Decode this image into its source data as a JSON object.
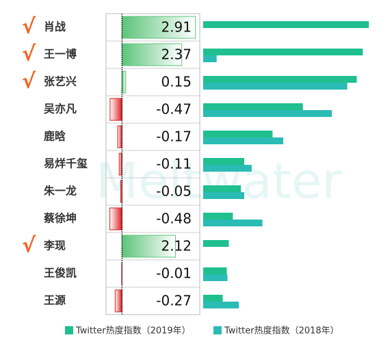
{
  "chart_data": {
    "type": "bar",
    "watermark": "Meltwater",
    "check_mark": "√",
    "categories": [
      "肖战",
      "王一博",
      "张艺兴",
      "吴亦凡",
      "鹿晗",
      "易烊千玺",
      "朱一龙",
      "蔡徐坤",
      "李现",
      "王俊凯",
      "王源"
    ],
    "checked": [
      true,
      true,
      true,
      false,
      false,
      false,
      false,
      false,
      true,
      false,
      false
    ],
    "differences": [
      2.91,
      2.37,
      0.15,
      -0.47,
      -0.17,
      -0.11,
      -0.05,
      -0.48,
      2.12,
      -0.01,
      -0.27
    ],
    "difference_lim": [
      -0.55,
      3.0
    ],
    "series": [
      {
        "name": "Twitter热度指数（2019年）",
        "color": "#1fbf8f",
        "values": [
          24.6,
          23.7,
          22.8,
          14.8,
          10.3,
          6.1,
          5.6,
          4.4,
          3.8,
          3.5,
          2.9
        ]
      },
      {
        "name": "Twitter热度指数（2018年）",
        "color": "#2bbbb5",
        "values": [
          0,
          2.0,
          21.4,
          19.1,
          11.9,
          7.2,
          6.1,
          8.8,
          0,
          3.6,
          5.3
        ]
      }
    ],
    "xlim": [
      0,
      25.6
    ]
  }
}
